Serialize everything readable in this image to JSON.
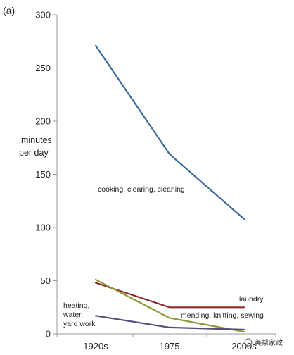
{
  "panel_label": "(a)",
  "watermark": "美帮家政",
  "chart_data": {
    "type": "line",
    "title": "",
    "xlabel": "",
    "ylabel": [
      "minutes",
      "per day"
    ],
    "categories": [
      "1920s",
      "1975",
      "2000s"
    ],
    "ylim": [
      0,
      300
    ],
    "yticks": [
      0,
      50,
      100,
      150,
      200,
      250,
      300
    ],
    "grid": false,
    "series": [
      {
        "values": [
          271,
          169,
          108
        ],
        "color": "#3b6a9c"
      },
      {
        "values": [
          48,
          25,
          25
        ],
        "color": "#8b2c2c"
      },
      {
        "values": [
          51,
          15,
          2
        ],
        "color": "#8c9a3c"
      },
      {
        "values": [
          17,
          6,
          4
        ],
        "color": "#5a4a7c"
      }
    ],
    "annotations": [
      {
        "id": "cooking",
        "lines": [
          "cooking, clearing, cleaning"
        ]
      },
      {
        "id": "laundry",
        "lines": [
          "laundry"
        ]
      },
      {
        "id": "mending",
        "lines": [
          "mending, knitting, sewing"
        ]
      },
      {
        "id": "heating",
        "lines": [
          "heating,",
          "water,",
          "yard work"
        ]
      }
    ]
  }
}
